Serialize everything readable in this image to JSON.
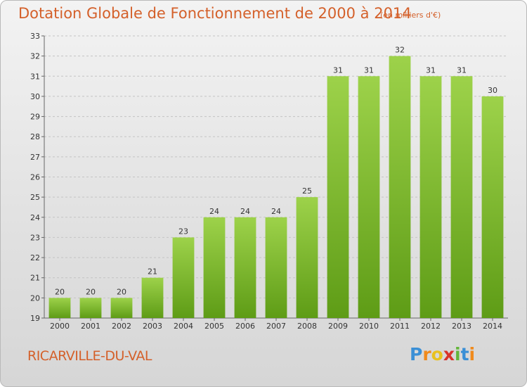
{
  "header": {
    "title": "Dotation Globale de Fonctionnement de 2000 à 2014",
    "subtitle": "(en milliers d'€)"
  },
  "footer": {
    "city": "RICARVILLE-DU-VAL",
    "logo_letters": [
      "P",
      "r",
      "o",
      "x",
      "i",
      "t",
      "i"
    ],
    "logo_colors": [
      "#3a8fd6",
      "#f08a1c",
      "#e9c11e",
      "#d8332a",
      "#63b63a",
      "#3a8fd6",
      "#f08a1c"
    ]
  },
  "colors": {
    "bar_top": "#9dd24a",
    "bar_bottom": "#5e9c16",
    "title": "#d4602a"
  },
  "chart_data": {
    "type": "bar",
    "categories": [
      "2000",
      "2001",
      "2002",
      "2003",
      "2004",
      "2005",
      "2006",
      "2007",
      "2008",
      "2009",
      "2010",
      "2011",
      "2012",
      "2013",
      "2014"
    ],
    "values": [
      20,
      20,
      20,
      21,
      23,
      24,
      24,
      24,
      25,
      31,
      31,
      32,
      31,
      31,
      30
    ],
    "ylim": [
      19,
      33
    ],
    "yticks": [
      19,
      20,
      21,
      22,
      23,
      24,
      25,
      26,
      27,
      28,
      29,
      30,
      31,
      32,
      33
    ],
    "grid": true,
    "data_labels": true
  }
}
